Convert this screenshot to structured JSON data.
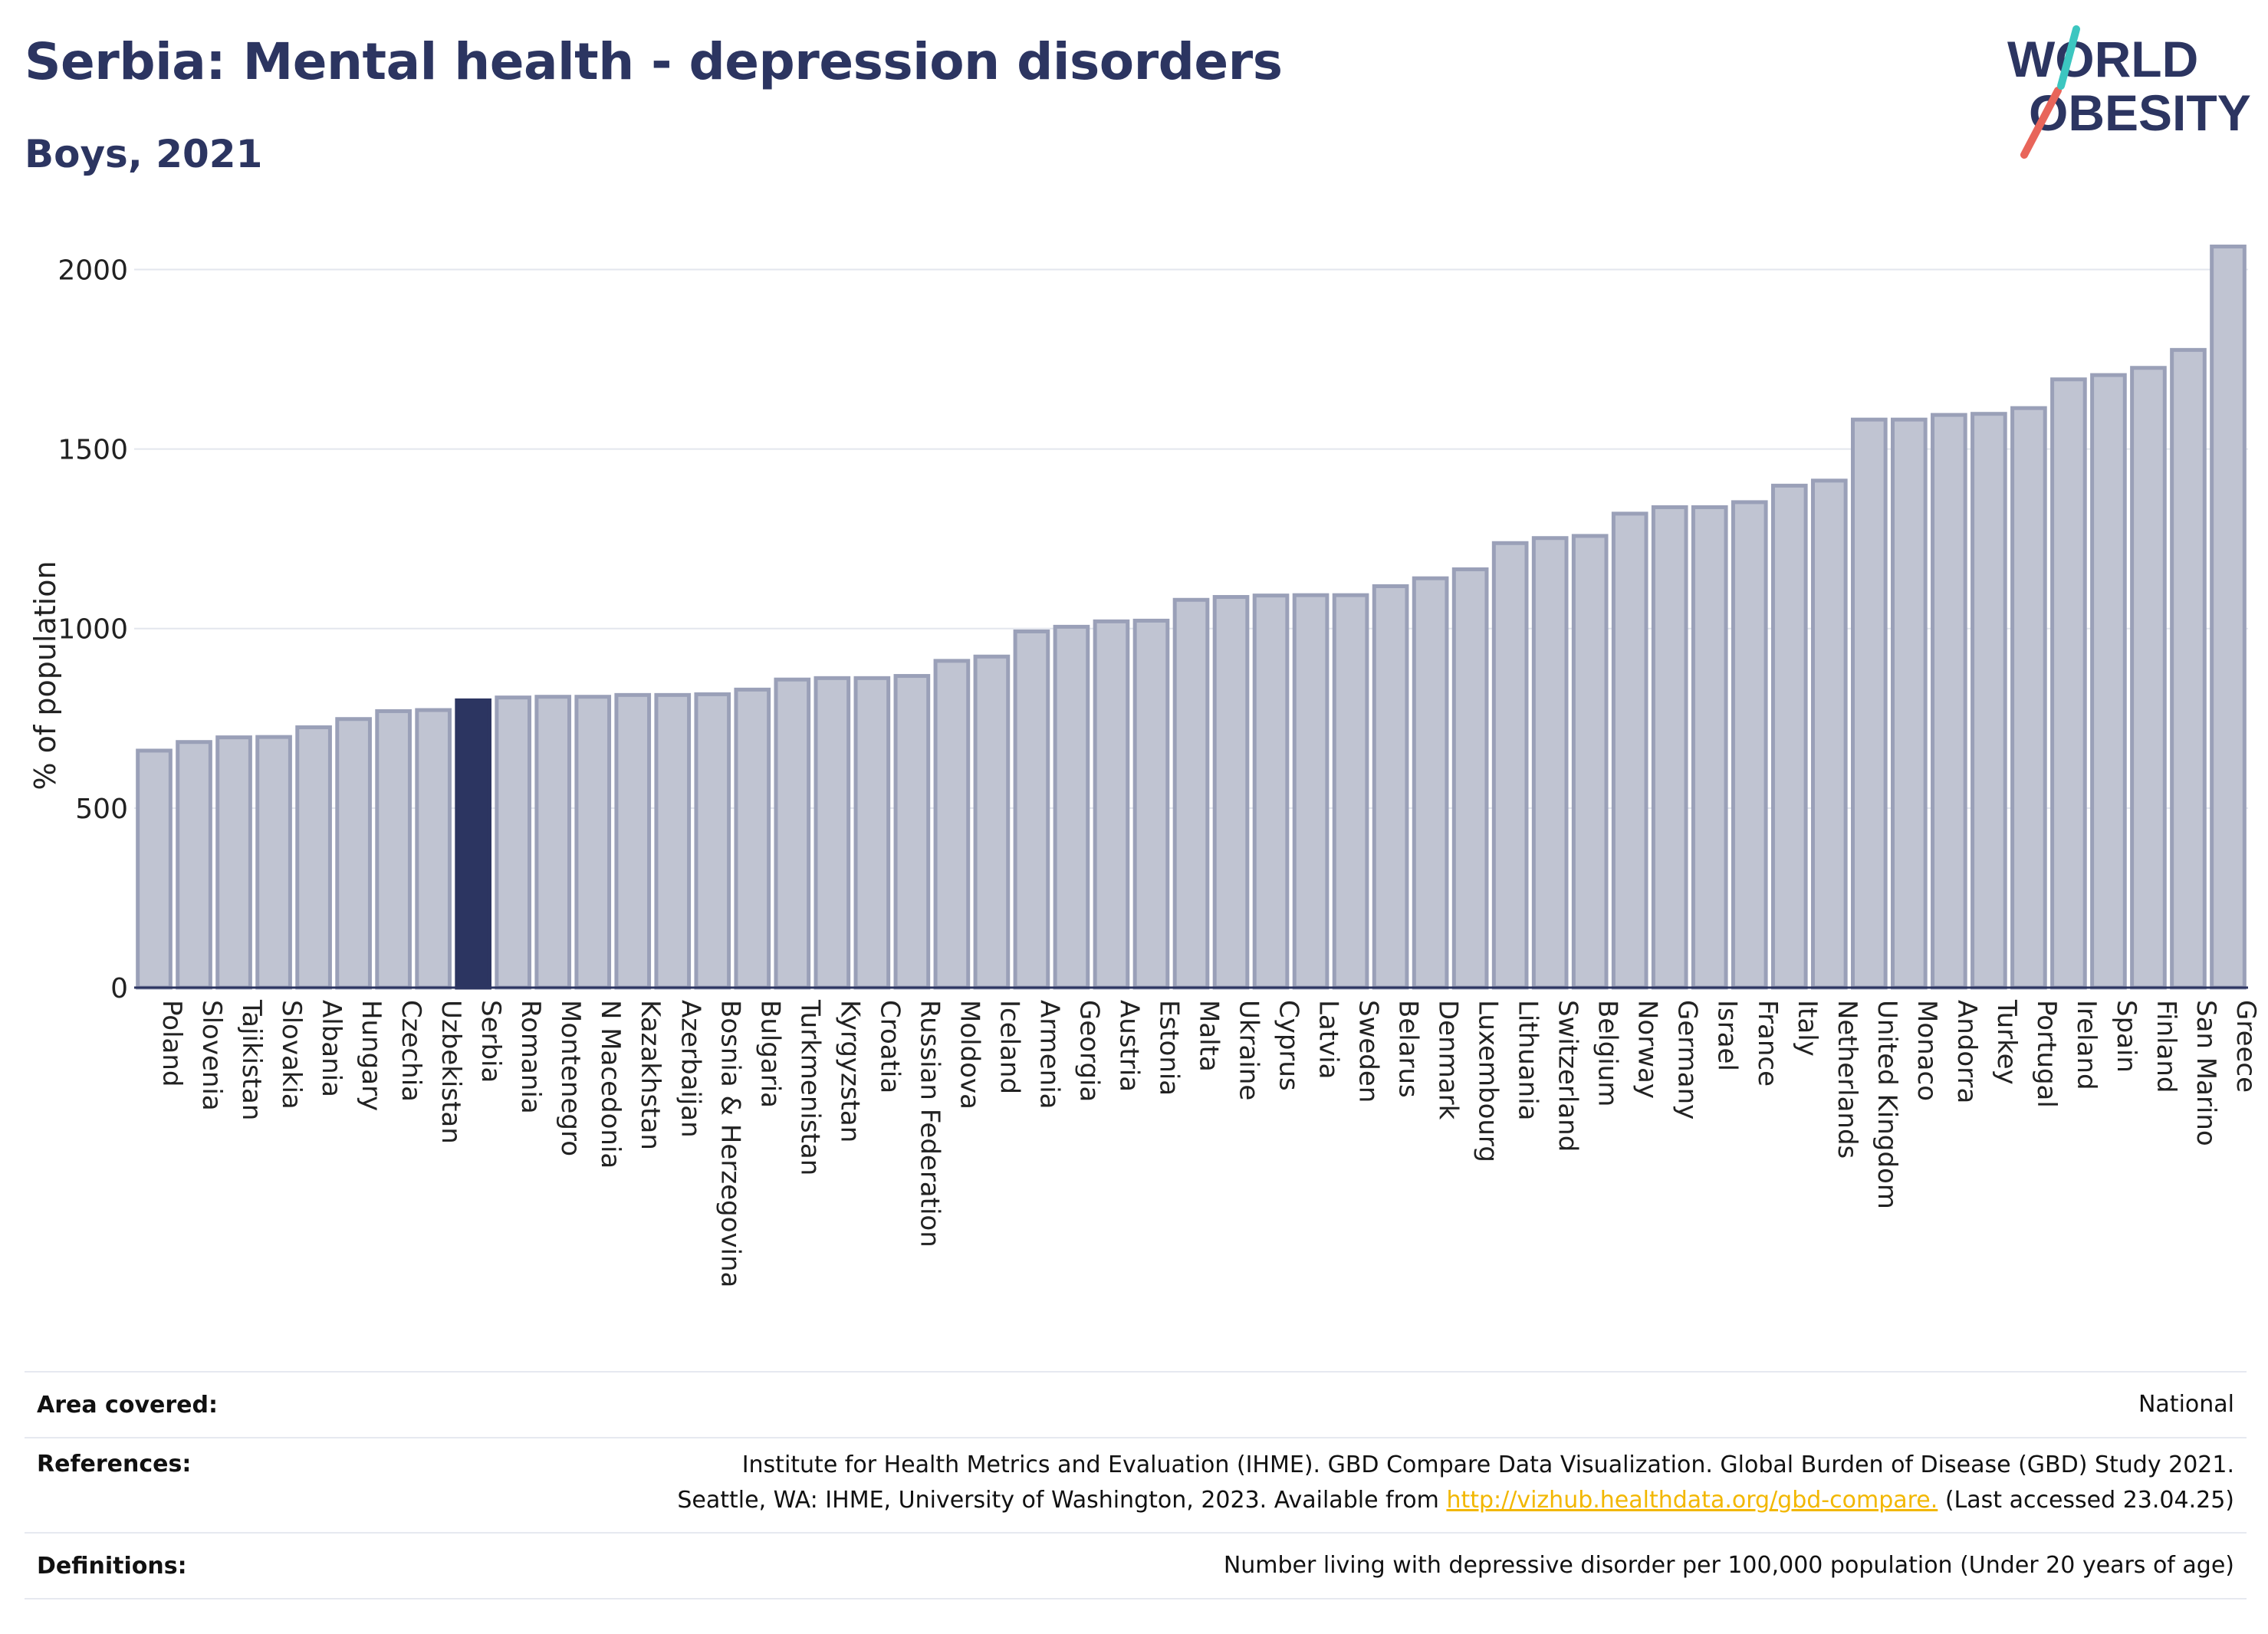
{
  "title": "Serbia: Mental health - depression disorders",
  "subtitle": "Boys, 2021",
  "logo": {
    "line1": "WORLD",
    "line2": "OBESITY"
  },
  "colors": {
    "highlight": "#2c3561",
    "bar": "#c0c4d2",
    "bar_stroke": "#9aa0b8",
    "accent_red": "#e8655a",
    "accent_teal": "#3cc6c0"
  },
  "chart_data": {
    "type": "bar",
    "ylabel": "% of population",
    "ylim": [
      0,
      2080
    ],
    "yticks": [
      0,
      500,
      1000,
      1500,
      2000
    ],
    "highlight": "Serbia",
    "categories": [
      "Poland",
      "Slovenia",
      "Tajikistan",
      "Slovakia",
      "Albania",
      "Hungary",
      "Czechia",
      "Uzbekistan",
      "Serbia",
      "Romania",
      "Montenegro",
      "N Macedonia",
      "Kazakhstan",
      "Azerbaijan",
      "Bosnia & Herzegovina",
      "Bulgaria",
      "Turkmenistan",
      "Kyrgyzstan",
      "Croatia",
      "Russian Federation",
      "Moldova",
      "Iceland",
      "Armenia",
      "Georgia",
      "Austria",
      "Estonia",
      "Malta",
      "Ukraine",
      "Cyprus",
      "Latvia",
      "Sweden",
      "Belarus",
      "Denmark",
      "Luxembourg",
      "Lithuania",
      "Switzerland",
      "Belgium",
      "Norway",
      "Germany",
      "Israel",
      "France",
      "Italy",
      "Netherlands",
      "United Kingdom",
      "Monaco",
      "Andorra",
      "Turkey",
      "Portugal",
      "Ireland",
      "Spain",
      "Finland",
      "San Marino",
      "Greece"
    ],
    "values": [
      660,
      684,
      697,
      698,
      725,
      748,
      770,
      773,
      800,
      808,
      810,
      810,
      815,
      815,
      817,
      830,
      858,
      862,
      862,
      868,
      910,
      922,
      992,
      1005,
      1020,
      1022,
      1080,
      1088,
      1092,
      1093,
      1093,
      1118,
      1140,
      1165,
      1238,
      1252,
      1258,
      1320,
      1338,
      1338,
      1352,
      1398,
      1412,
      1582,
      1582,
      1595,
      1598,
      1614,
      1694,
      1706,
      1726,
      1776,
      2064
    ]
  },
  "footer": {
    "area_label": "Area covered:",
    "area_value": "National",
    "references_label": "References:",
    "references_line1": "Institute for Health Metrics and Evaluation (IHME). GBD Compare Data Visualization. Global Burden of Disease (GBD) Study 2021.",
    "references_line2_pre": "Seattle, WA: IHME, University of Washington, 2023. Available from",
    "references_link": "http://vizhub.healthdata.org/gbd-compare.",
    "references_line2_post": "(Last accessed 23.04.25)",
    "definitions_label": "Definitions:",
    "definitions_value": "Number living with depressive disorder per 100,000 population (Under 20 years of age)"
  }
}
